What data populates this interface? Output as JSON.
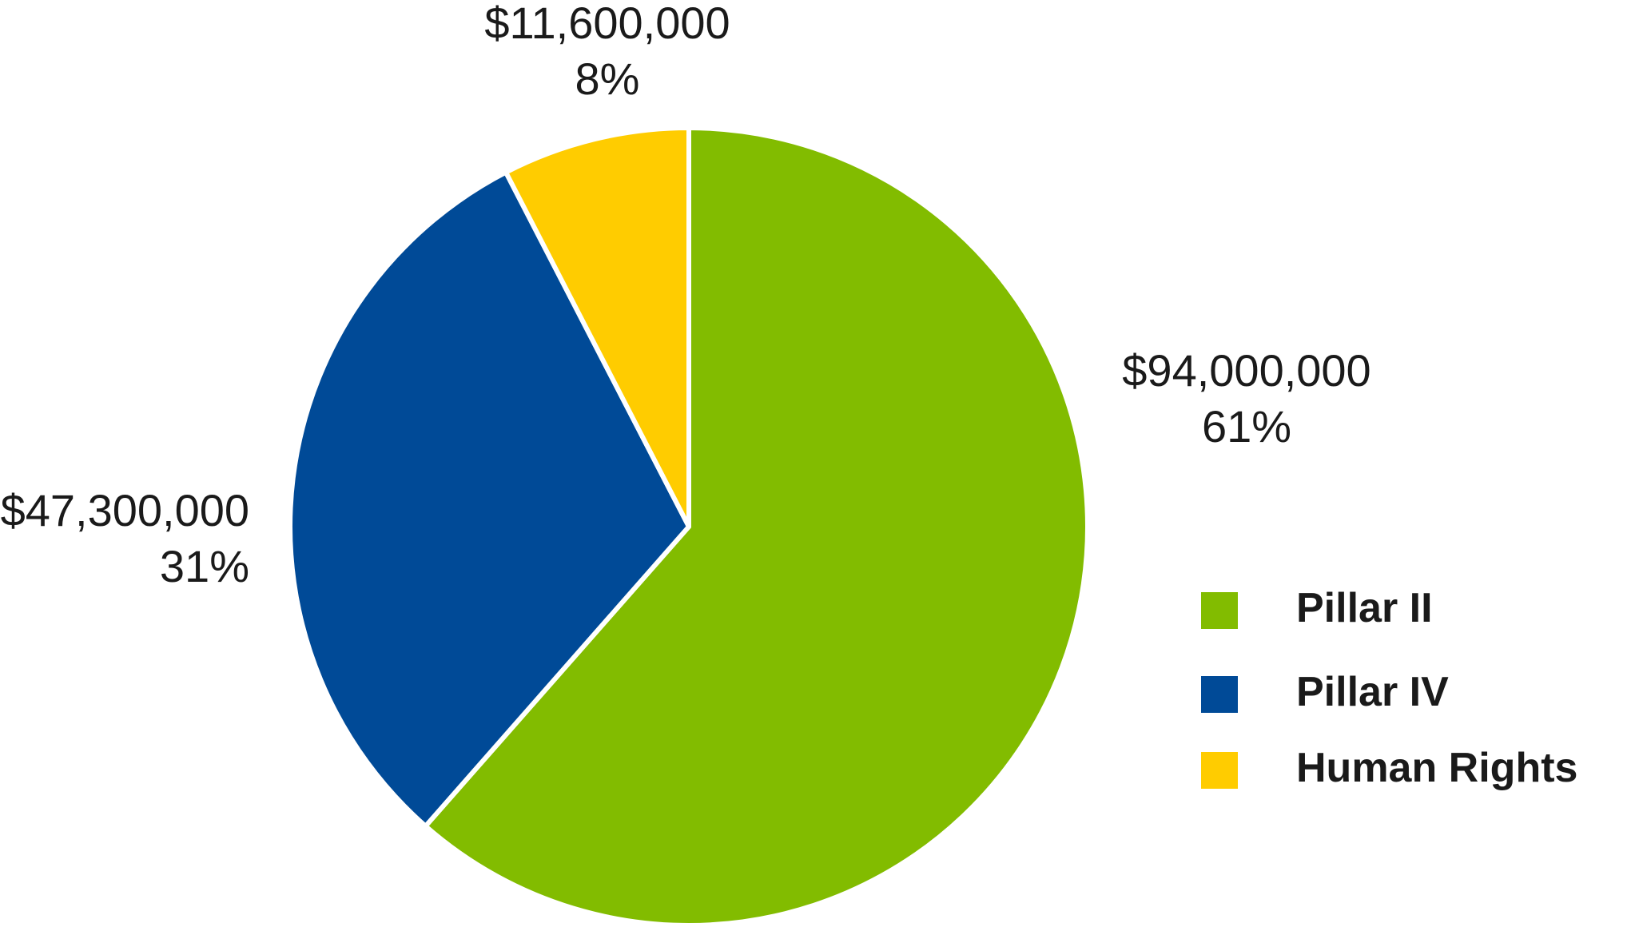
{
  "chart_data": {
    "type": "pie",
    "slices": [
      {
        "name": "Pillar II",
        "amount": 94000000,
        "amount_label": "$94,000,000",
        "percent": 61,
        "percent_label": "61%",
        "color": "#82bc00"
      },
      {
        "name": "Pillar IV",
        "amount": 47300000,
        "amount_label": "$47,300,000",
        "percent": 31,
        "percent_label": "31%",
        "color": "#004a97"
      },
      {
        "name": "Human Rights",
        "amount": 11600000,
        "amount_label": "$11,600,000",
        "percent": 8,
        "percent_label": "8%",
        "color": "#ffcc00"
      }
    ],
    "legend_position": "right"
  }
}
